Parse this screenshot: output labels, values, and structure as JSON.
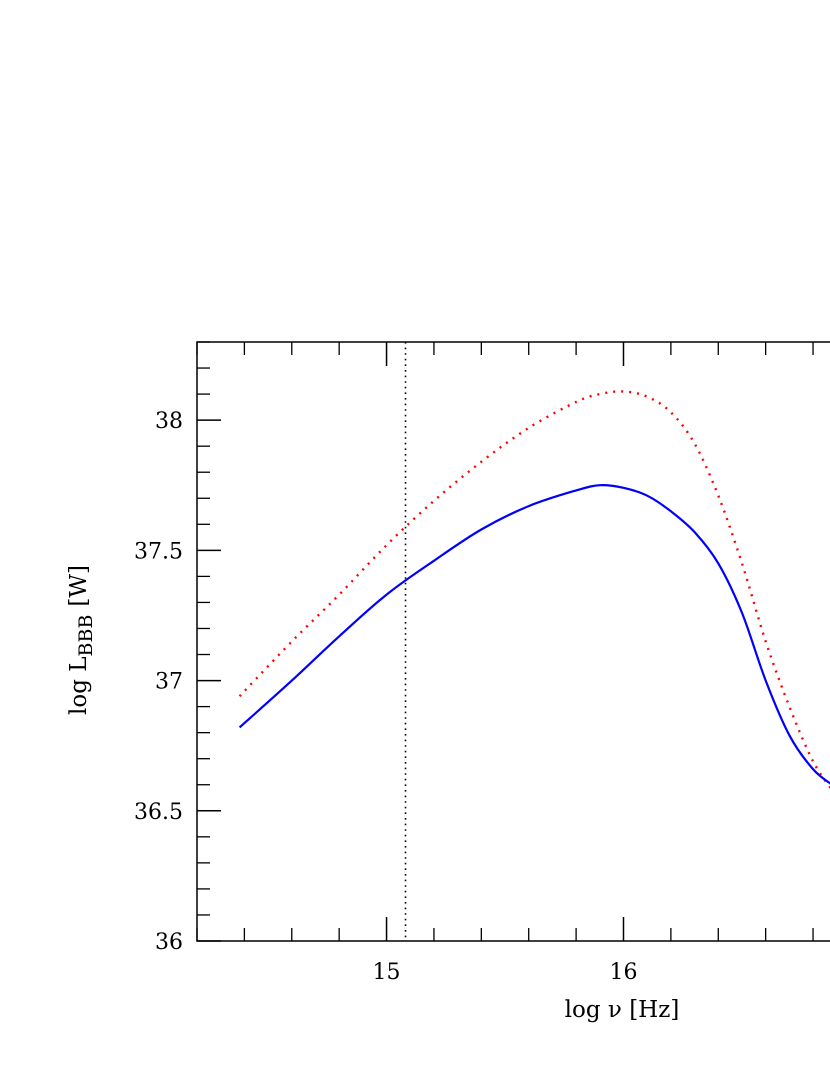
{
  "chart_data": {
    "type": "line",
    "xlabel": "log ν [Hz]",
    "ylabel": "log L BBB [W]",
    "ylabel_main": "log L",
    "ylabel_sub": "BBB",
    "ylabel_unit": "[W]",
    "xlim": [
      14.2,
      16.88
    ],
    "ylim": [
      36,
      38.3
    ],
    "x_ticks": [
      15,
      16
    ],
    "x_tick_labels": [
      "15",
      "16"
    ],
    "x_minor_step": 0.2,
    "y_ticks": [
      36,
      36.5,
      37,
      37.5,
      38
    ],
    "y_tick_labels": [
      "36",
      "36.5",
      "37",
      "37.5",
      "38"
    ],
    "y_minor_step": 0.1,
    "grid": false,
    "vline": {
      "x": 15.08,
      "style": "dotted",
      "color": "#000000"
    },
    "series": [
      {
        "style": "dotted",
        "color": "#ff0000",
        "x": [
          14.38,
          14.6,
          14.8,
          15.0,
          15.2,
          15.4,
          15.6,
          15.8,
          15.9,
          16.0,
          16.1,
          16.2,
          16.3,
          16.4,
          16.5,
          16.6,
          16.7,
          16.8,
          16.88
        ],
        "y": [
          36.94,
          37.15,
          37.33,
          37.52,
          37.69,
          37.84,
          37.97,
          38.07,
          38.1,
          38.11,
          38.09,
          38.03,
          37.91,
          37.71,
          37.45,
          37.15,
          36.9,
          36.69,
          36.58
        ]
      },
      {
        "style": "solid",
        "color": "#0000ff",
        "x": [
          14.38,
          14.6,
          14.8,
          15.0,
          15.2,
          15.4,
          15.6,
          15.8,
          15.9,
          16.0,
          16.1,
          16.2,
          16.3,
          16.4,
          16.5,
          16.6,
          16.7,
          16.8,
          16.88
        ],
        "y": [
          36.82,
          37.0,
          37.17,
          37.33,
          37.46,
          37.58,
          37.67,
          37.73,
          37.75,
          37.74,
          37.71,
          37.65,
          37.57,
          37.45,
          37.26,
          37.0,
          36.79,
          36.66,
          36.6
        ]
      }
    ]
  }
}
